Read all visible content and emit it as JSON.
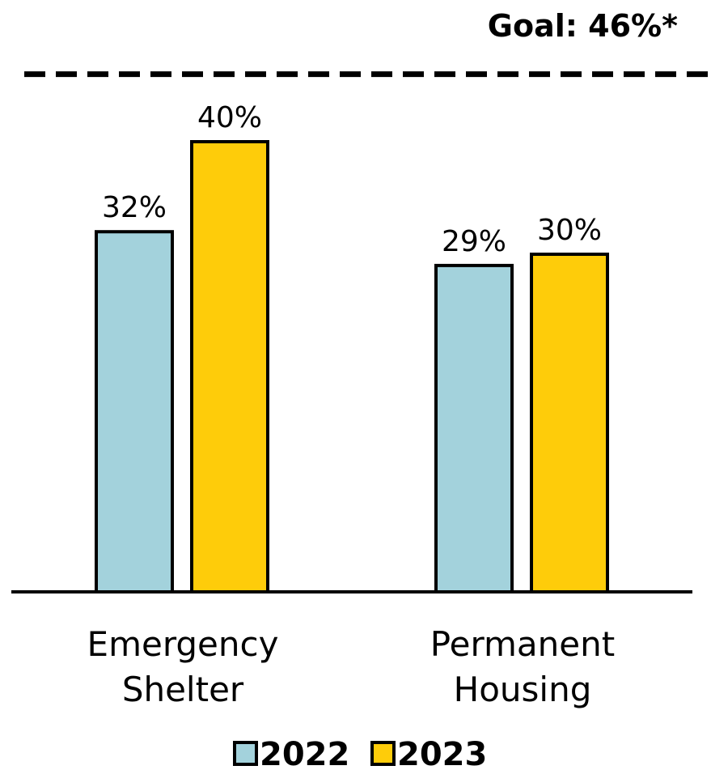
{
  "chart_data": {
    "type": "bar",
    "title": "",
    "xlabel": "",
    "ylabel": "",
    "ylim": [
      0,
      48
    ],
    "grid": false,
    "legend_position": "bottom-center",
    "categories": [
      [
        "Emergency",
        "Shelter"
      ],
      [
        "Permanent",
        "Housing"
      ]
    ],
    "series": [
      {
        "name": "2022",
        "color": "#a3d2dc",
        "values": [
          32,
          29
        ],
        "labels": [
          "32%",
          "29%"
        ]
      },
      {
        "name": "2023",
        "color": "#fecc0a",
        "values": [
          40,
          30
        ],
        "labels": [
          "40%",
          "30%"
        ]
      }
    ],
    "reference_line": {
      "value": 46,
      "label": "Goal: 46%*",
      "style": "dashed"
    }
  }
}
